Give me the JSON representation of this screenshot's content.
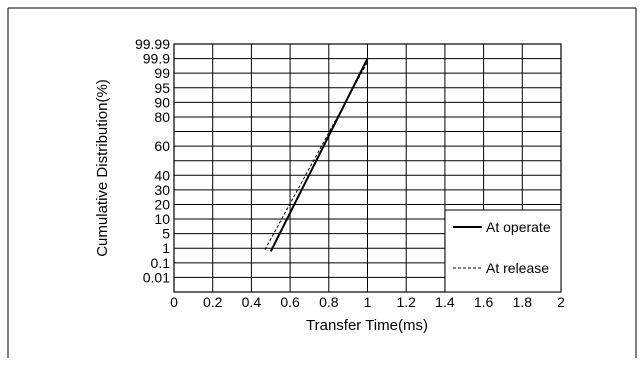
{
  "chart_data": {
    "type": "line",
    "title": "",
    "xlabel": "Transfer Time(ms)",
    "ylabel": "Cumulative Distribution(%)",
    "xlim": [
      0,
      2
    ],
    "x_ticks": [
      "0",
      "0.2",
      "0.4",
      "0.6",
      "0.8",
      "1",
      "1.2",
      "1.4",
      "1.6",
      "1.8",
      "2"
    ],
    "y_scale": "probability",
    "y_ticks": [
      "0.01",
      "0.1",
      "1",
      "5",
      "10",
      "20",
      "30",
      "40",
      "50",
      "60",
      "70",
      "80",
      "90",
      "95",
      "99",
      "99.9",
      "99.99"
    ],
    "y_tick_labels": [
      "0.01",
      "0.1",
      "1",
      "5",
      "10",
      "20",
      "30",
      "40",
      "60",
      "80",
      "90",
      "95",
      "99",
      "99.9",
      "99.99"
    ],
    "grid": true,
    "legend": "bottom-right",
    "series": [
      {
        "name": "At operate",
        "style": "solid",
        "x": [
          0.5,
          1.0
        ],
        "y": [
          0.6,
          99.9
        ]
      },
      {
        "name": "At release",
        "style": "dashed",
        "x": [
          0.47,
          1.0
        ],
        "y": [
          0.8,
          99.7
        ]
      }
    ]
  }
}
